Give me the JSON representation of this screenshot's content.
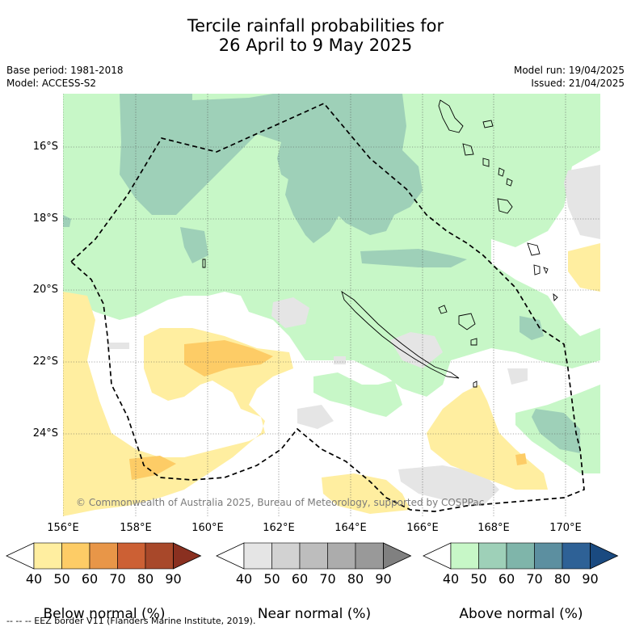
{
  "title_line1": "Tercile rainfall probabilities for",
  "title_line2": "26 April to 9 May 2025",
  "base_period": "Base period: 1981-2018",
  "model": "Model: ACCESS-S2",
  "model_run": "Model run: 19/04/2025",
  "issued": "Issued: 21/04/2025",
  "copyright": "© Commonwealth of Australia 2025, Bureau of Meteorology, supported by COSPPac",
  "footer": "-- -- -- EEZ border V11 (Flanders Marine Institute, 2019).",
  "lon_labels": [
    "156°E",
    "158°E",
    "160°E",
    "162°E",
    "164°E",
    "166°E",
    "168°E",
    "170°E"
  ],
  "lat_labels": [
    "16°S",
    "18°S",
    "20°S",
    "22°S",
    "24°S"
  ],
  "colorbars": [
    {
      "label": "Below normal (%)",
      "ticks": [
        "40",
        "50",
        "60",
        "70",
        "80",
        "90"
      ],
      "colors": [
        "#ffffff",
        "#ffeea0",
        "#fdcc66",
        "#e89648",
        "#cc6034",
        "#a8482a",
        "#8a3020"
      ]
    },
    {
      "label": "Near normal (%)",
      "ticks": [
        "40",
        "50",
        "60",
        "70",
        "80",
        "90"
      ],
      "colors": [
        "#ffffff",
        "#e5e5e5",
        "#d2d2d2",
        "#bdbdbd",
        "#acacac",
        "#999999",
        "#808080"
      ]
    },
    {
      "label": "Above normal (%)",
      "ticks": [
        "40",
        "50",
        "60",
        "70",
        "80",
        "90"
      ],
      "colors": [
        "#ffffff",
        "#c7f7c7",
        "#9ed0b8",
        "#7fb5aa",
        "#5c8fa0",
        "#2e6196",
        "#1a4a80"
      ]
    }
  ]
}
